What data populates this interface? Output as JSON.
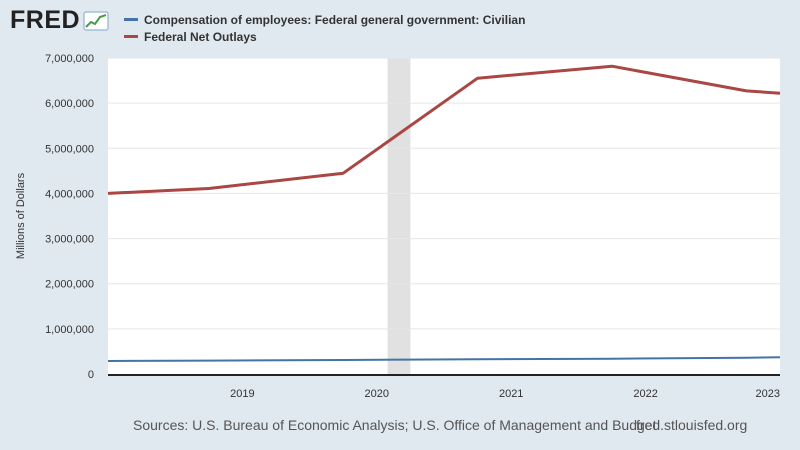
{
  "logo": {
    "text": "FRED"
  },
  "chart_data": {
    "type": "line",
    "title": "",
    "xlabel": "",
    "ylabel": "Millions of Dollars",
    "ylim": [
      0,
      7000000
    ],
    "xlim": [
      2018.0,
      2023.0
    ],
    "y_ticks": [
      0,
      1000000,
      2000000,
      3000000,
      4000000,
      5000000,
      6000000,
      7000000
    ],
    "y_tick_labels": [
      "0",
      "1,000,000",
      "2,000,000",
      "3,000,000",
      "4,000,000",
      "5,000,000",
      "6,000,000",
      "7,000,000"
    ],
    "x_ticks": [
      2019,
      2020,
      2021,
      2022,
      2023
    ],
    "x_tick_labels": [
      "2019",
      "2020",
      "2021",
      "2022",
      "2023"
    ],
    "recession": {
      "start": 2020.08,
      "end": 2020.25,
      "color": "#e1e1e1"
    },
    "grid": true,
    "series": [
      {
        "name": "Compensation of employees: Federal general government: Civilian",
        "color": "#4572a7",
        "x": [
          2018.0,
          2018.75,
          2019.75,
          2020.75,
          2021.75,
          2022.75,
          2023.0
        ],
        "values": [
          288000,
          297000,
          311000,
          325000,
          338000,
          362000,
          372000
        ]
      },
      {
        "name": "Federal Net Outlays",
        "color": "#aa4643",
        "x": [
          2018.0,
          2018.75,
          2019.75,
          2020.75,
          2021.75,
          2022.75,
          2023.0
        ],
        "values": [
          4000000,
          4109000,
          4447000,
          6552000,
          6818000,
          6272000,
          6220000
        ]
      }
    ]
  },
  "footer": {
    "sources": "Sources: U.S. Bureau of Economic Analysis; U.S. Office of Management and Budget",
    "url": "fred.stlouisfed.org"
  }
}
